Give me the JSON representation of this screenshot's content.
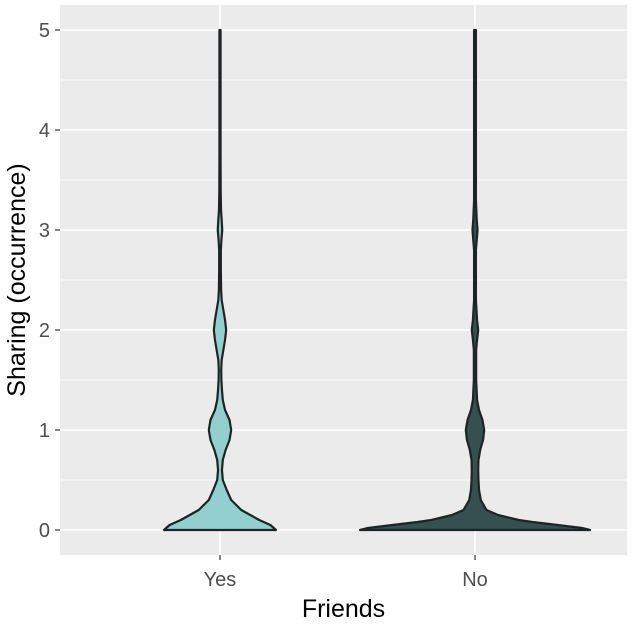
{
  "chart_data": {
    "type": "violin",
    "title": "",
    "xlabel": "Friends",
    "ylabel": "Sharing (occurrence)",
    "categories": [
      "Yes",
      "No"
    ],
    "ylim": [
      -0.05,
      5.0
    ],
    "yticks": [
      0,
      1,
      2,
      3,
      4,
      5
    ],
    "grid": true,
    "legend": "none",
    "colors": {
      "Yes": "#93cfcf",
      "No": "#365050",
      "panel": "#ebebeb",
      "grid": "#ffffff",
      "outline": "#1e2424"
    },
    "series": [
      {
        "category": "Yes",
        "y_range": [
          0,
          5
        ],
        "density_profile": [
          [
            0.0,
            1.0
          ],
          [
            0.05,
            0.9
          ],
          [
            0.1,
            0.7
          ],
          [
            0.2,
            0.38
          ],
          [
            0.3,
            0.2
          ],
          [
            0.4,
            0.12
          ],
          [
            0.5,
            0.05
          ],
          [
            0.6,
            0.035
          ],
          [
            0.7,
            0.05
          ],
          [
            0.8,
            0.1
          ],
          [
            0.9,
            0.17
          ],
          [
            1.0,
            0.2
          ],
          [
            1.1,
            0.17
          ],
          [
            1.2,
            0.09
          ],
          [
            1.3,
            0.05
          ],
          [
            1.4,
            0.035
          ],
          [
            1.5,
            0.025
          ],
          [
            1.6,
            0.022
          ],
          [
            1.7,
            0.03
          ],
          [
            1.8,
            0.06
          ],
          [
            1.9,
            0.09
          ],
          [
            2.0,
            0.11
          ],
          [
            2.1,
            0.09
          ],
          [
            2.2,
            0.06
          ],
          [
            2.3,
            0.03
          ],
          [
            2.4,
            0.02
          ],
          [
            2.6,
            0.015
          ],
          [
            2.8,
            0.015
          ],
          [
            2.9,
            0.025
          ],
          [
            3.0,
            0.04
          ],
          [
            3.1,
            0.03
          ],
          [
            3.2,
            0.018
          ],
          [
            3.4,
            0.012
          ],
          [
            3.8,
            0.01
          ],
          [
            4.0,
            0.01
          ],
          [
            4.5,
            0.01
          ],
          [
            5.0,
            0.01
          ]
        ]
      },
      {
        "category": "No",
        "y_range": [
          0,
          5
        ],
        "density_profile": [
          [
            0.0,
            1.0
          ],
          [
            0.02,
            0.93
          ],
          [
            0.05,
            0.72
          ],
          [
            0.08,
            0.5
          ],
          [
            0.1,
            0.38
          ],
          [
            0.15,
            0.2
          ],
          [
            0.2,
            0.1
          ],
          [
            0.3,
            0.05
          ],
          [
            0.4,
            0.035
          ],
          [
            0.5,
            0.03
          ],
          [
            0.6,
            0.028
          ],
          [
            0.7,
            0.03
          ],
          [
            0.8,
            0.045
          ],
          [
            0.9,
            0.07
          ],
          [
            1.0,
            0.08
          ],
          [
            1.1,
            0.065
          ],
          [
            1.2,
            0.035
          ],
          [
            1.3,
            0.018
          ],
          [
            1.5,
            0.01
          ],
          [
            1.8,
            0.01
          ],
          [
            1.9,
            0.018
          ],
          [
            2.0,
            0.028
          ],
          [
            2.1,
            0.018
          ],
          [
            2.3,
            0.008
          ],
          [
            2.8,
            0.008
          ],
          [
            2.9,
            0.015
          ],
          [
            3.0,
            0.022
          ],
          [
            3.1,
            0.015
          ],
          [
            3.3,
            0.008
          ],
          [
            4.0,
            0.008
          ],
          [
            5.0,
            0.008
          ]
        ]
      }
    ]
  }
}
